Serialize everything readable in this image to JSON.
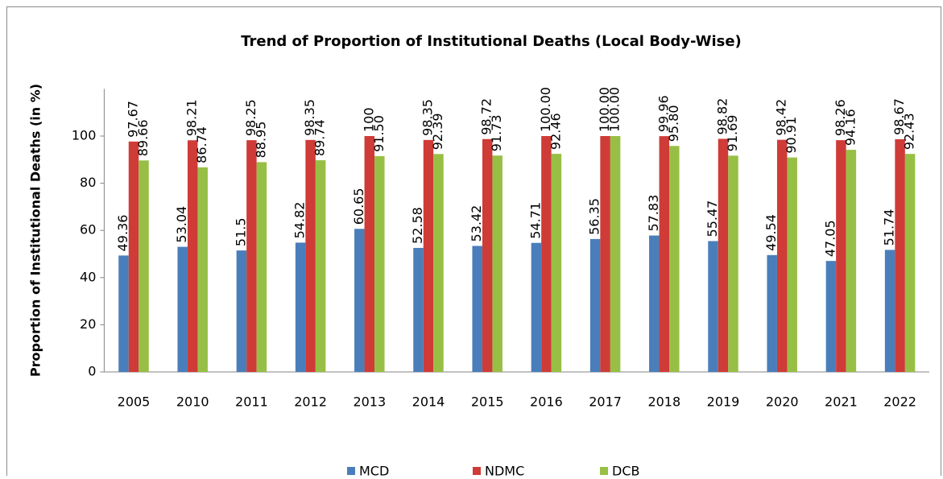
{
  "chart_data": {
    "type": "bar",
    "title": "Trend of Proportion of Institutional Deaths (Local Body-Wise)",
    "y_label": "Proportion of Institutional Deaths (in %)",
    "categories": [
      "2005",
      "2010",
      "2011",
      "2012",
      "2013",
      "2014",
      "2015",
      "2016",
      "2017",
      "2018",
      "2019",
      "2020",
      "2021",
      "2022"
    ],
    "series": [
      {
        "name": "MCD",
        "color": "#4a7ebb",
        "values": [
          49.36,
          53.04,
          51.5,
          54.82,
          60.65,
          52.58,
          53.42,
          54.71,
          56.35,
          57.83,
          55.47,
          49.54,
          47.05,
          51.74
        ]
      },
      {
        "name": "NDMC",
        "color": "#cf3b37",
        "values": [
          97.67,
          98.21,
          98.25,
          98.35,
          100,
          98.35,
          98.72,
          100,
          100,
          99.96,
          98.82,
          98.42,
          98.26,
          98.67
        ],
        "value_labels": [
          "97.67",
          "98.21",
          "98.25",
          "98.35",
          "100",
          "98.35",
          "98.72",
          "100.00",
          "100.00",
          "99.96",
          "98.82",
          "98.42",
          "98.26",
          "98.67"
        ]
      },
      {
        "name": "DCB",
        "color": "#98bf45",
        "values": [
          89.66,
          86.74,
          88.95,
          89.74,
          91.5,
          92.39,
          91.73,
          92.46,
          100,
          95.8,
          91.69,
          90.91,
          94.16,
          92.43
        ],
        "value_labels": [
          "89.66",
          "86.74",
          "88.95",
          "89.74",
          "91.50",
          "92.39",
          "91.73",
          "92.46",
          "100.00",
          "95.80",
          "91.69",
          "90.91",
          "94.16",
          "92.43"
        ]
      }
    ],
    "ylim": [
      0,
      120
    ],
    "yticks": [
      0,
      20,
      40,
      60,
      80,
      100
    ],
    "grid": false,
    "legend": "bottom"
  }
}
